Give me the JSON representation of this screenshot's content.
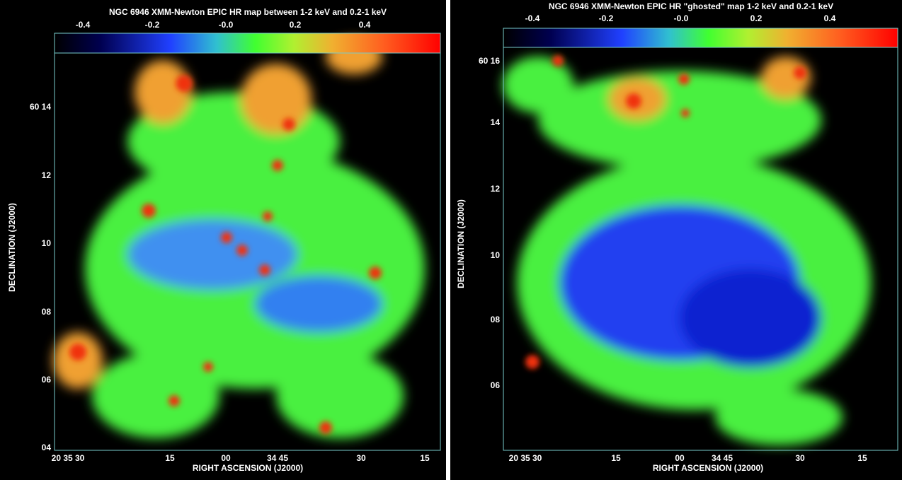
{
  "panels": [
    {
      "title": "NGC 6946 XMM-Newton EPIC HR map between 1-2 keV and 0.2-1 keV",
      "colorbar_ticks": [
        "-0.4",
        "-0.2",
        "-0.0",
        "0.2",
        "0.4"
      ],
      "y_ticks": [
        "60 14",
        "12",
        "10",
        "08",
        "06",
        "04"
      ],
      "x_ticks": [
        "20 35 30",
        "15",
        "00",
        "34 45",
        "30",
        "15"
      ],
      "x_label": "RIGHT ASCENSION (J2000)",
      "y_label": "DECLINATION (J2000)"
    },
    {
      "title": "NGC 6946 XMM-Newton EPIC HR \"ghosted\" map 1-2 keV and 0.2-1 keV",
      "colorbar_ticks": [
        "-0.4",
        "-0.2",
        "-0.0",
        "0.2",
        "0.4"
      ],
      "y_ticks": [
        "60 16",
        "14",
        "12",
        "10",
        "08",
        "06"
      ],
      "x_ticks": [
        "20 35 30",
        "15",
        "00",
        "34 45",
        "30",
        "15"
      ],
      "x_label": "RIGHT ASCENSION (J2000)",
      "y_label": "DECLINATION (J2000)"
    }
  ]
}
